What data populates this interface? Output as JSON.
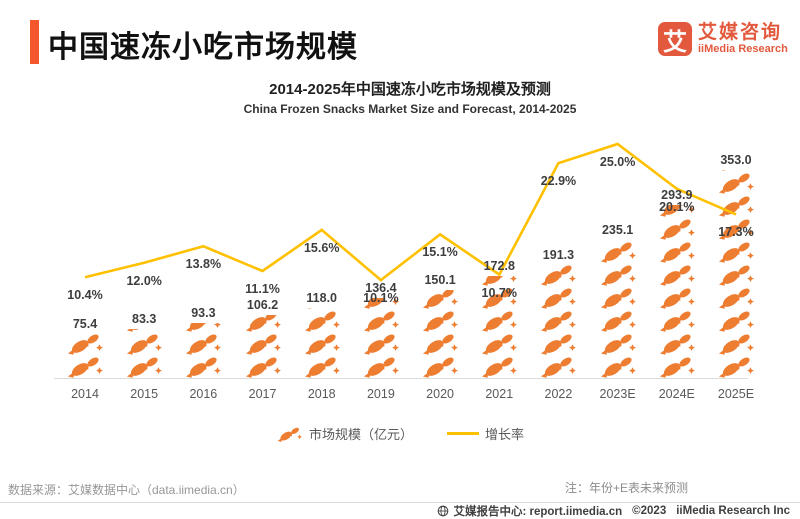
{
  "header": {
    "title": "中国速冻小吃市场规模",
    "logo": {
      "glyph": "艾",
      "brand_cn": "艾媒咨询",
      "brand_en": "iiMedia Research"
    }
  },
  "chart_data": {
    "type": "combo-pictogram-bar-line",
    "title": "2014-2025年中国速冻小吃市场规模及预测",
    "subtitle": "China Frozen Snacks Market Size and Forecast, 2014-2025",
    "categories": [
      "2014",
      "2015",
      "2016",
      "2017",
      "2018",
      "2019",
      "2020",
      "2021",
      "2022",
      "2023E",
      "2024E",
      "2025E"
    ],
    "series": [
      {
        "name": "市场规模（亿元）",
        "type": "pictogram-bar",
        "unit": "亿元",
        "color": "#ED7D31",
        "values": [
          75.4,
          83.3,
          93.3,
          106.2,
          118.0,
          136.4,
          150.1,
          172.8,
          191.3,
          235.1,
          293.9,
          353.0
        ]
      },
      {
        "name": "增长率",
        "type": "line",
        "unit": "%",
        "color": "#FFC000",
        "values": [
          10.4,
          12.0,
          13.8,
          11.1,
          15.6,
          10.1,
          15.1,
          10.7,
          22.9,
          25.0,
          20.1,
          17.3
        ]
      }
    ],
    "legend_position": "bottom",
    "grid": false
  },
  "footer": {
    "source": "数据来源：艾媒数据中心（data.iimedia.cn）",
    "note": "注：年份+E表未来预测",
    "report_center": "艾媒报告中心: report.iimedia.cn",
    "copyright": "©2023",
    "company": "iiMedia Research  Inc"
  },
  "colors": {
    "accent_bar": "#F4572B",
    "brand": "#E2593D",
    "pictogram": "#ED7D31",
    "growth_line": "#FFC000",
    "label_text": "#3d3d3d",
    "axis_text": "#595959"
  }
}
